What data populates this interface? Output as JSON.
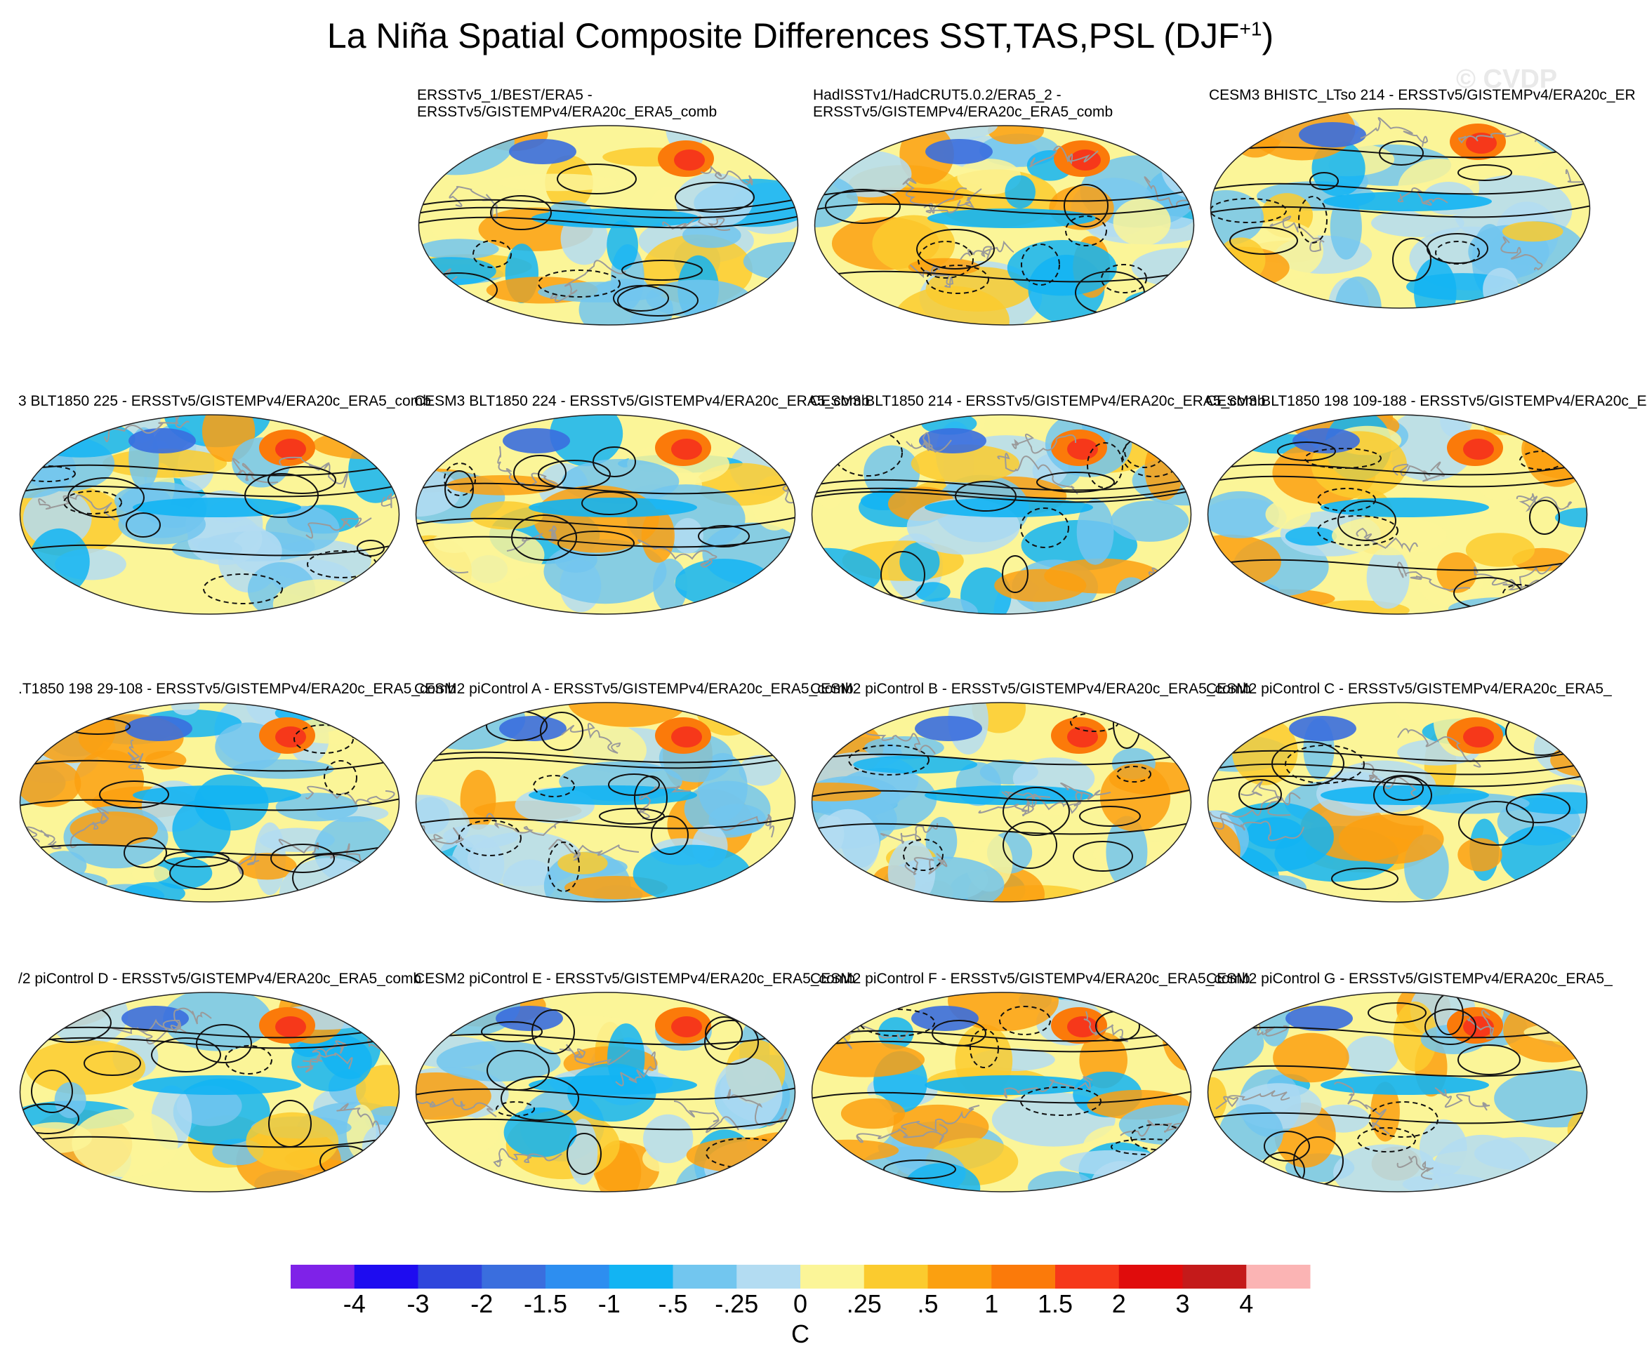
{
  "title": {
    "main": "La Niña Spatial Composite Differences SST,TAS,PSL (DJF",
    "sup": "+1",
    "end": ")"
  },
  "watermark": "© CVDP",
  "panels": [
    {
      "line1": "ERSSTv5_1/BEST/ERA5 -",
      "line2": "ERSSTv5/GISTEMPv4/ERA20c_ERA5_comb"
    },
    {
      "line1": "HadISSTv1/HadCRUT5.0.2/ERA5_2 -",
      "line2": "ERSSTv5/GISTEMPv4/ERA20c_ERA5_comb"
    },
    {
      "line1": "CESM3 BHISTC_LTso 214 - ERSSTv5/GISTEMPv4/ERA20c_ER",
      "line2": ""
    },
    {
      "line1": "3 BLT1850 225 - ERSSTv5/GISTEMPv4/ERA20c_ERA5_comb",
      "line2": ""
    },
    {
      "line1": "CESM3 BLT1850 224 - ERSSTv5/GISTEMPv4/ERA20c_ERA5_comb",
      "line2": ""
    },
    {
      "line1": "CESM3 BLT1850 214 - ERSSTv5/GISTEMPv4/ERA20c_ERA5_comb",
      "line2": ""
    },
    {
      "line1": "CESM3 BLT1850 198 109-188 - ERSSTv5/GISTEMPv4/ERA20c_E",
      "line2": ""
    },
    {
      "line1": ".T1850 198 29-108 - ERSSTv5/GISTEMPv4/ERA20c_ERA5_comb",
      "line2": ""
    },
    {
      "line1": "CESM2 piControl A - ERSSTv5/GISTEMPv4/ERA20c_ERA5_comb",
      "line2": ""
    },
    {
      "line1": "CESM2 piControl B - ERSSTv5/GISTEMPv4/ERA20c_ERA5_comb",
      "line2": ""
    },
    {
      "line1": "CESM2 piControl C - ERSSTv5/GISTEMPv4/ERA20c_ERA5_",
      "line2": ""
    },
    {
      "line1": "/2 piControl D - ERSSTv5/GISTEMPv4/ERA20c_ERA5_comb",
      "line2": ""
    },
    {
      "line1": "CESM2 piControl E - ERSSTv5/GISTEMPv4/ERA20c_ERA5_comb",
      "line2": ""
    },
    {
      "line1": "CESM2 piControl F - ERSSTv5/GISTEMPv4/ERA20c_ERA5_comb",
      "line2": ""
    },
    {
      "line1": "CESM2 piControl G - ERSSTv5/GISTEMPv4/ERA20c_ERA5_",
      "line2": ""
    }
  ],
  "colorbar": {
    "colors": [
      "#7f22e8",
      "#1e0cf0",
      "#2f46dc",
      "#3a6ede",
      "#2d8ef0",
      "#12b4f3",
      "#72c6ef",
      "#b3dcf2",
      "#fbf598",
      "#fbcb2e",
      "#fba010",
      "#fb7a0a",
      "#f6381a",
      "#e00c0c",
      "#c41a1a",
      "#fbb4b4"
    ],
    "labels": [
      "-4",
      "-3",
      "-2",
      "-1.5",
      "-1",
      "-.5",
      "-.25",
      "0",
      ".25",
      ".5",
      "1",
      "1.5",
      "2",
      "3",
      "4"
    ],
    "units": "C"
  }
}
